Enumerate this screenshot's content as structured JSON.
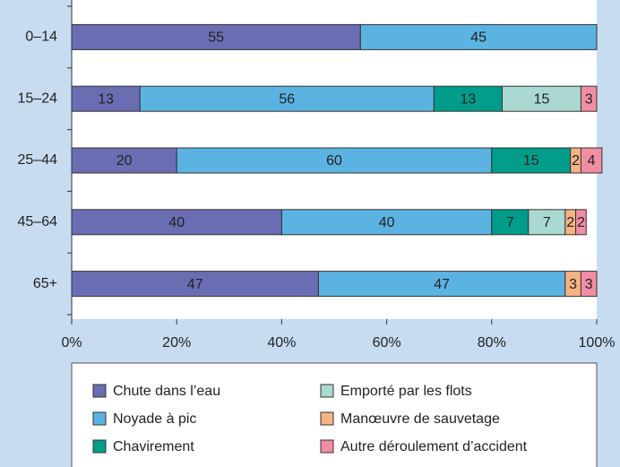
{
  "chart_data": {
    "type": "stacked_barh",
    "categories": [
      "0–14",
      "15–24",
      "25–44",
      "45–64",
      "65+"
    ],
    "series": [
      {
        "name": "Chute dans l’eau",
        "color": "#6b6db3",
        "values": [
          55,
          13,
          20,
          40,
          47
        ]
      },
      {
        "name": "Noyade à pic",
        "color": "#5bb3e1",
        "values": [
          45,
          56,
          60,
          40,
          47
        ]
      },
      {
        "name": "Chavirement",
        "color": "#009d8a",
        "values": [
          null,
          13,
          15,
          7,
          null
        ]
      },
      {
        "name": "Emporté par les flots",
        "color": "#a9d9d0",
        "values": [
          null,
          15,
          null,
          7,
          null
        ]
      },
      {
        "name": "Manœuvre de sauvetage",
        "color": "#f6b283",
        "values": [
          null,
          null,
          2,
          2,
          3
        ]
      },
      {
        "name": "Autre déroulement d’accident",
        "color": "#f18ea3",
        "values": [
          null,
          3,
          4,
          2,
          3
        ]
      }
    ],
    "xlim": [
      0,
      100
    ],
    "xticks": [
      {
        "value": 0,
        "label": "0%"
      },
      {
        "value": 20,
        "label": "20%"
      },
      {
        "value": 40,
        "label": "40%"
      },
      {
        "value": 60,
        "label": "60%"
      },
      {
        "value": 80,
        "label": "80%"
      },
      {
        "value": 100,
        "label": "100%"
      }
    ],
    "legend": "bottom"
  }
}
